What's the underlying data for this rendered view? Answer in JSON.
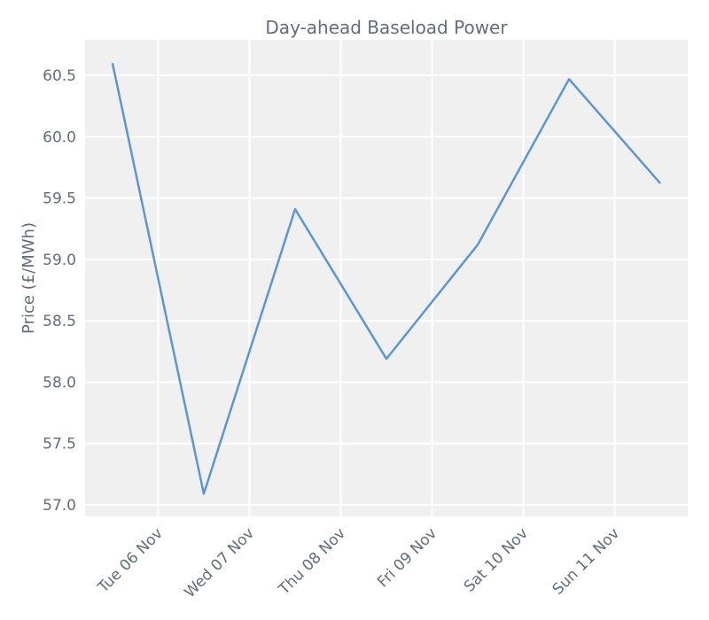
{
  "chart_data": {
    "type": "line",
    "title": "Day-ahead Baseload Power",
    "y_label": "Price (£/MWh)",
    "x": [
      5.5,
      6.5,
      7.5,
      8.5,
      9.5,
      10.5,
      11.5
    ],
    "series": [
      {
        "name": "Price",
        "color": "#5b97d5",
        "values": [
          60.6,
          57.09,
          59.41,
          58.19,
          59.12,
          60.47,
          59.62
        ]
      }
    ],
    "xlim": [
      5.2,
      11.8
    ],
    "xticks": [
      {
        "value": 6,
        "label": "Tue 06 Nov"
      },
      {
        "value": 7,
        "label": "Wed 07 Nov"
      },
      {
        "value": 8,
        "label": "Thu 08 Nov"
      },
      {
        "value": 9,
        "label": "Fri 09 Nov"
      },
      {
        "value": 10,
        "label": "Sat 10 Nov"
      },
      {
        "value": 11,
        "label": "Sun 11 Nov"
      }
    ],
    "ylim": [
      56.906,
      60.79
    ],
    "yticks": [
      {
        "value": 57,
        "label": "57.0"
      },
      57.5,
      {
        "value": 58,
        "label": "58.0"
      },
      58.5,
      {
        "value": 59,
        "label": "59.0"
      },
      59.5,
      {
        "value": 60,
        "label": "60.0"
      },
      60.5
    ],
    "grid": true
  }
}
